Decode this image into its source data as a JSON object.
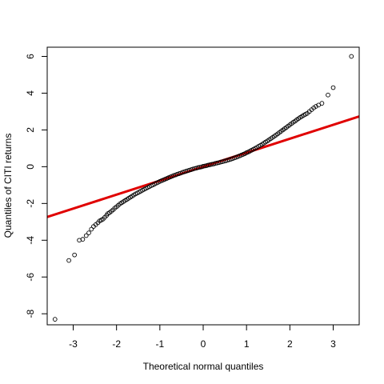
{
  "chart_data": {
    "type": "scatter",
    "title": "",
    "xlabel": "Theoretical normal quantiles",
    "ylabel": "Quantiles of CITI returns",
    "xlim": [
      -3.6,
      3.6
    ],
    "ylim": [
      -8.6,
      6.5
    ],
    "xticks": [
      -3,
      -2,
      -1,
      0,
      1,
      2,
      3
    ],
    "yticks": [
      -8,
      -6,
      -4,
      -2,
      0,
      2,
      4,
      6
    ],
    "grid": false,
    "legend": "none",
    "reference_line": {
      "intercept": 0.0,
      "slope": 0.76,
      "color": "#e00000"
    },
    "point_color": "#000000",
    "series": [
      {
        "points": [
          [
            -3.42,
            -8.3
          ],
          [
            -3.1,
            -5.1
          ],
          [
            -2.97,
            -4.8
          ],
          [
            -2.86,
            -4.0
          ],
          [
            -2.78,
            -3.95
          ],
          [
            -2.7,
            -3.75
          ],
          [
            -2.64,
            -3.6
          ],
          [
            -2.58,
            -3.4
          ],
          [
            -2.53,
            -3.25
          ],
          [
            -2.48,
            -3.15
          ],
          [
            -2.43,
            -3.05
          ],
          [
            -2.39,
            -2.95
          ],
          [
            -2.35,
            -2.9
          ],
          [
            -2.31,
            -2.85
          ],
          [
            -2.27,
            -2.75
          ],
          [
            -2.23,
            -2.65
          ],
          [
            -2.2,
            -2.55
          ],
          [
            -2.16,
            -2.5
          ],
          [
            -2.12,
            -2.42
          ],
          [
            -2.08,
            -2.35
          ],
          [
            -2.04,
            -2.25
          ],
          [
            -2.0,
            -2.18
          ],
          [
            -1.96,
            -2.1
          ],
          [
            -1.92,
            -2.02
          ],
          [
            -1.88,
            -1.96
          ],
          [
            -1.84,
            -1.9
          ],
          [
            -1.8,
            -1.84
          ],
          [
            -1.76,
            -1.78
          ],
          [
            -1.72,
            -1.72
          ],
          [
            -1.68,
            -1.66
          ],
          [
            -1.64,
            -1.6
          ],
          [
            -1.6,
            -1.54
          ],
          [
            -1.56,
            -1.48
          ],
          [
            -1.52,
            -1.43
          ],
          [
            -1.48,
            -1.38
          ],
          [
            -1.44,
            -1.33
          ],
          [
            -1.4,
            -1.28
          ],
          [
            -1.36,
            -1.23
          ],
          [
            -1.32,
            -1.18
          ],
          [
            -1.28,
            -1.13
          ],
          [
            -1.24,
            -1.08
          ],
          [
            -1.2,
            -1.03
          ],
          [
            -1.16,
            -0.99
          ],
          [
            -1.12,
            -0.94
          ],
          [
            -1.08,
            -0.89
          ],
          [
            -1.04,
            -0.85
          ],
          [
            -1.0,
            -0.8
          ],
          [
            -0.96,
            -0.76
          ],
          [
            -0.92,
            -0.72
          ],
          [
            -0.88,
            -0.68
          ],
          [
            -0.84,
            -0.64
          ],
          [
            -0.8,
            -0.6
          ],
          [
            -0.76,
            -0.56
          ],
          [
            -0.72,
            -0.52
          ],
          [
            -0.68,
            -0.48
          ],
          [
            -0.64,
            -0.45
          ],
          [
            -0.6,
            -0.41
          ],
          [
            -0.56,
            -0.38
          ],
          [
            -0.52,
            -0.35
          ],
          [
            -0.48,
            -0.31
          ],
          [
            -0.44,
            -0.28
          ],
          [
            -0.4,
            -0.25
          ],
          [
            -0.36,
            -0.22
          ],
          [
            -0.32,
            -0.19
          ],
          [
            -0.28,
            -0.16
          ],
          [
            -0.24,
            -0.13
          ],
          [
            -0.2,
            -0.1
          ],
          [
            -0.16,
            -0.08
          ],
          [
            -0.12,
            -0.05
          ],
          [
            -0.08,
            -0.03
          ],
          [
            -0.04,
            -0.01
          ],
          [
            0.0,
            0.02
          ],
          [
            0.04,
            0.04
          ],
          [
            0.08,
            0.06
          ],
          [
            0.12,
            0.09
          ],
          [
            0.16,
            0.11
          ],
          [
            0.2,
            0.13
          ],
          [
            0.24,
            0.15
          ],
          [
            0.28,
            0.18
          ],
          [
            0.32,
            0.2
          ],
          [
            0.36,
            0.22
          ],
          [
            0.4,
            0.25
          ],
          [
            0.44,
            0.27
          ],
          [
            0.48,
            0.3
          ],
          [
            0.52,
            0.32
          ],
          [
            0.56,
            0.35
          ],
          [
            0.6,
            0.38
          ],
          [
            0.64,
            0.41
          ],
          [
            0.68,
            0.44
          ],
          [
            0.72,
            0.48
          ],
          [
            0.76,
            0.51
          ],
          [
            0.8,
            0.55
          ],
          [
            0.84,
            0.59
          ],
          [
            0.88,
            0.63
          ],
          [
            0.92,
            0.67
          ],
          [
            0.96,
            0.71
          ],
          [
            1.0,
            0.76
          ],
          [
            1.04,
            0.8
          ],
          [
            1.08,
            0.85
          ],
          [
            1.12,
            0.9
          ],
          [
            1.16,
            0.95
          ],
          [
            1.2,
            1.0
          ],
          [
            1.24,
            1.05
          ],
          [
            1.28,
            1.11
          ],
          [
            1.32,
            1.16
          ],
          [
            1.36,
            1.22
          ],
          [
            1.4,
            1.28
          ],
          [
            1.44,
            1.34
          ],
          [
            1.48,
            1.4
          ],
          [
            1.52,
            1.46
          ],
          [
            1.56,
            1.53
          ],
          [
            1.6,
            1.59
          ],
          [
            1.64,
            1.66
          ],
          [
            1.68,
            1.72
          ],
          [
            1.72,
            1.79
          ],
          [
            1.76,
            1.86
          ],
          [
            1.8,
            1.93
          ],
          [
            1.84,
            2.0
          ],
          [
            1.88,
            2.07
          ],
          [
            1.92,
            2.14
          ],
          [
            1.96,
            2.21
          ],
          [
            2.0,
            2.28
          ],
          [
            2.04,
            2.35
          ],
          [
            2.08,
            2.42
          ],
          [
            2.12,
            2.48
          ],
          [
            2.16,
            2.55
          ],
          [
            2.2,
            2.62
          ],
          [
            2.24,
            2.68
          ],
          [
            2.28,
            2.74
          ],
          [
            2.32,
            2.8
          ],
          [
            2.36,
            2.85
          ],
          [
            2.4,
            2.9
          ],
          [
            2.45,
            3.0
          ],
          [
            2.5,
            3.1
          ],
          [
            2.55,
            3.2
          ],
          [
            2.6,
            3.28
          ],
          [
            2.66,
            3.35
          ],
          [
            2.74,
            3.45
          ],
          [
            2.88,
            3.9
          ],
          [
            3.0,
            4.3
          ],
          [
            3.42,
            6.0
          ]
        ]
      }
    ]
  }
}
